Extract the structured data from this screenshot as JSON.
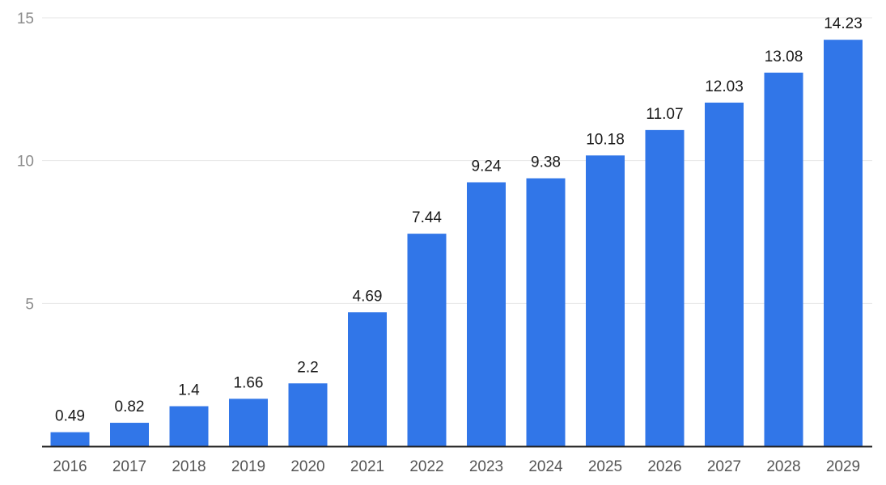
{
  "chart_data": {
    "type": "bar",
    "title": "",
    "xlabel": "",
    "ylabel": "",
    "categories": [
      "2016",
      "2017",
      "2018",
      "2019",
      "2020",
      "2021",
      "2022",
      "2023",
      "2024",
      "2025",
      "2026",
      "2027",
      "2028",
      "2029"
    ],
    "values": [
      0.49,
      0.82,
      1.4,
      1.66,
      2.2,
      4.69,
      7.44,
      9.24,
      9.38,
      10.18,
      11.07,
      12.03,
      13.08,
      14.23
    ],
    "data_labels": [
      "0.49",
      "0.82",
      "1.4",
      "1.66",
      "2.2",
      "4.69",
      "7.44",
      "9.24",
      "9.38",
      "10.18",
      "11.07",
      "12.03",
      "13.08",
      "14.23"
    ],
    "ylim": [
      0,
      15
    ],
    "yticks": [
      5,
      10,
      15
    ],
    "ytick_labels": [
      "5",
      "10",
      "15"
    ],
    "grid": true,
    "legend": "none",
    "bar_color": "#3176e8",
    "grid_color": "#e6e6e6",
    "axis_color": "#222222"
  }
}
